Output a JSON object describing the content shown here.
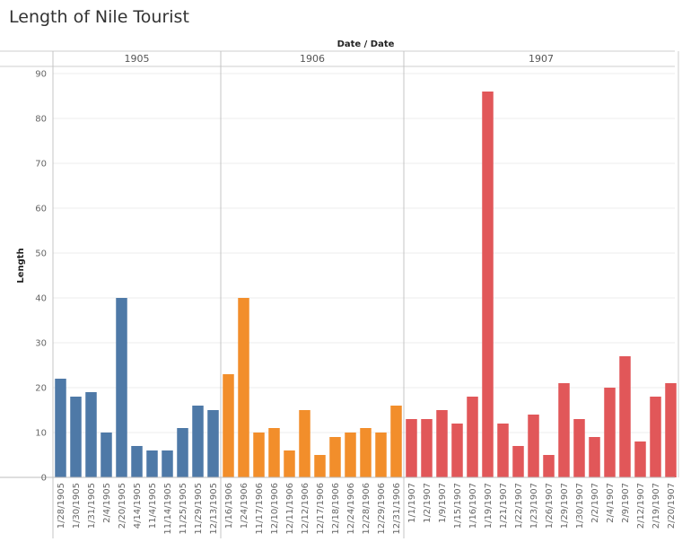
{
  "chart_data": {
    "type": "bar",
    "title": "Length of Nile Tourist",
    "header_label": "Date / Date",
    "ylabel": "Length",
    "ylim": [
      0,
      90
    ],
    "yticks": [
      0,
      10,
      20,
      30,
      40,
      50,
      60,
      70,
      80,
      90
    ],
    "grid": true,
    "groups": [
      {
        "year": "1905",
        "color": "#4e79a7",
        "categories": [
          "1/28/1905",
          "1/30/1905",
          "1/31/1905",
          "2/4/1905",
          "2/20/1905",
          "4/14/1905",
          "11/4/1905",
          "11/14/1905",
          "11/25/1905",
          "11/29/1905",
          "12/13/1905"
        ],
        "values": [
          22,
          18,
          19,
          10,
          40,
          7,
          6,
          6,
          11,
          16,
          15
        ]
      },
      {
        "year": "1906",
        "color": "#f28e2b",
        "categories": [
          "1/16/1906",
          "1/24/1906",
          "11/17/1906",
          "12/10/1906",
          "12/11/1906",
          "12/12/1906",
          "12/17/1906",
          "12/18/1906",
          "12/24/1906",
          "12/28/1906",
          "12/29/1906",
          "12/31/1906"
        ],
        "values": [
          23,
          40,
          10,
          11,
          6,
          15,
          5,
          9,
          10,
          11,
          10,
          16
        ]
      },
      {
        "year": "1907",
        "color": "#e15759",
        "categories": [
          "1/1/1907",
          "1/2/1907",
          "1/9/1907",
          "1/15/1907",
          "1/16/1907",
          "1/19/1907",
          "1/21/1907",
          "1/22/1907",
          "1/23/1907",
          "1/26/1907",
          "1/29/1907",
          "1/30/1907",
          "2/2/1907",
          "2/4/1907",
          "2/9/1907",
          "2/12/1907",
          "2/19/1907",
          "2/20/1907"
        ],
        "values": [
          13,
          13,
          15,
          12,
          18,
          86,
          12,
          7,
          14,
          5,
          21,
          13,
          9,
          20,
          27,
          8,
          18,
          21
        ]
      }
    ]
  }
}
